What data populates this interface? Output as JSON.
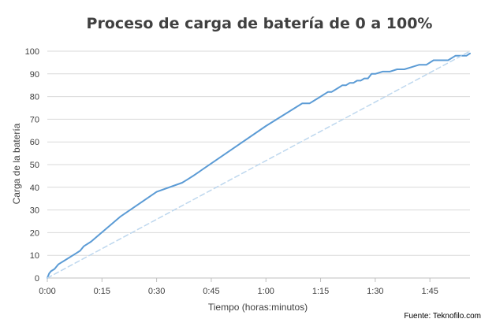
{
  "chart_data": {
    "type": "line",
    "title": "Proceso de carga de batería de 0 a 100%",
    "xlabel": "Tiempo (horas:minutos)",
    "ylabel": "Carga de la batería",
    "source": "Fuente: Teknofilo.com",
    "xlim": [
      0,
      116
    ],
    "ylim": [
      0,
      100
    ],
    "x_ticks": [
      0,
      15,
      30,
      45,
      60,
      75,
      90,
      105
    ],
    "x_tick_labels": [
      "0:00",
      "0:15",
      "0:30",
      "0:45",
      "1:00",
      "1:15",
      "1:30",
      "1:45"
    ],
    "y_ticks": [
      0,
      10,
      20,
      30,
      40,
      50,
      60,
      70,
      80,
      90,
      100
    ],
    "y_tick_labels": [
      "0",
      "10",
      "20",
      "30",
      "40",
      "50",
      "60",
      "70",
      "80",
      "90",
      "100"
    ],
    "grid": "horizontal",
    "legend": "none",
    "series": [
      {
        "style": "solid",
        "color": "#5B9BD5",
        "x": [
          0,
          0.5,
          1,
          2,
          3,
          5,
          8,
          9,
          10,
          12,
          20,
          30,
          37,
          38,
          39,
          40,
          50,
          60,
          70,
          71,
          72,
          73,
          75,
          76,
          77,
          78,
          80,
          81,
          82,
          83,
          84,
          85,
          86,
          87,
          88,
          89,
          90,
          92,
          94,
          96,
          98,
          100,
          102,
          103,
          104,
          106,
          107,
          108,
          110,
          112,
          114,
          115,
          116
        ],
        "y": [
          0,
          2,
          3,
          4,
          6,
          8,
          11,
          12,
          14,
          16,
          27,
          38,
          42,
          43,
          44,
          45,
          56,
          67,
          77,
          77,
          77,
          78,
          80,
          81,
          82,
          82,
          84,
          85,
          85,
          86,
          86,
          87,
          87,
          88,
          88,
          90,
          90,
          91,
          91,
          92,
          92,
          93,
          94,
          94,
          94,
          96,
          96,
          96,
          96,
          98,
          98,
          98,
          99
        ]
      },
      {
        "style": "dashed",
        "color": "#BDD7EE",
        "x": [
          0,
          116
        ],
        "y": [
          0,
          100
        ]
      }
    ]
  }
}
